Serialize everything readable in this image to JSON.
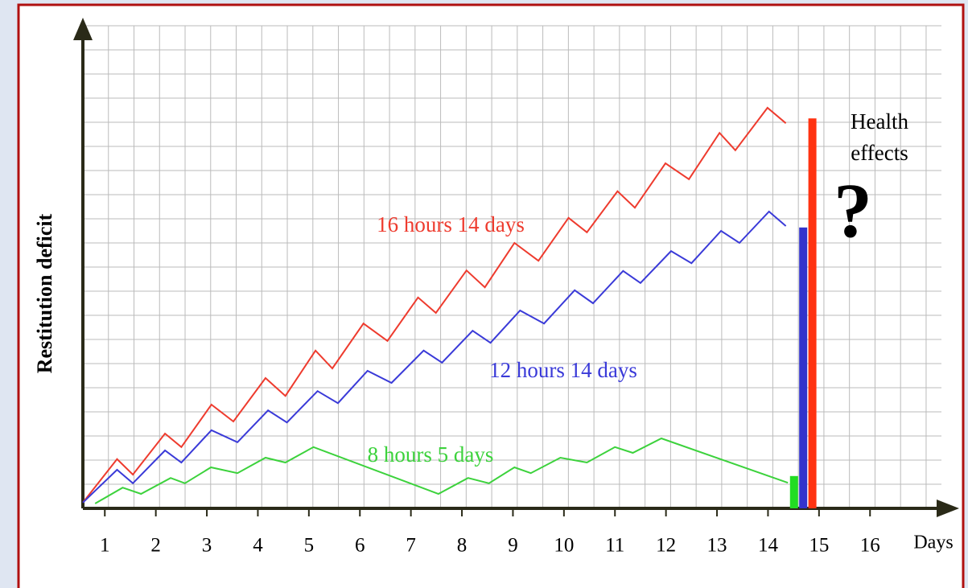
{
  "chart_data": {
    "type": "line",
    "y_label": "Restitution deficit",
    "x_label": "Days",
    "xlim": [
      0.57,
      17.4
    ],
    "ylim": [
      0,
      100
    ],
    "xticks": [
      1,
      2,
      3,
      4,
      5,
      6,
      7,
      8,
      9,
      10,
      11,
      12,
      13,
      14,
      15,
      16
    ],
    "grid": true,
    "series": [
      {
        "name": "16 hours 14 days",
        "color": "#ee3b2e",
        "x": [
          0.57,
          1.24,
          1.55,
          2.18,
          2.5,
          3.09,
          3.52,
          4.15,
          4.54,
          5.13,
          5.46,
          6.07,
          6.54,
          7.14,
          7.49,
          8.09,
          8.45,
          9.03,
          9.5,
          10.09,
          10.45,
          11.05,
          11.39,
          11.99,
          12.45,
          13.05,
          13.36,
          13.99,
          14.35
        ],
        "values": [
          1.2,
          10.2,
          7,
          15.5,
          12.7,
          21.5,
          18,
          27,
          23.3,
          32.7,
          29,
          38.3,
          34.7,
          43.7,
          40.5,
          49.3,
          45.8,
          55,
          51.3,
          60.2,
          57.2,
          65.7,
          62.3,
          71.5,
          68.2,
          77.8,
          74.2,
          83,
          79.8
        ]
      },
      {
        "name": "12 hours 14 days",
        "color": "#3a3ad8",
        "x": [
          0.57,
          1.24,
          1.55,
          2.18,
          2.5,
          3.09,
          3.6,
          4.2,
          4.57,
          5.17,
          5.57,
          6.15,
          6.62,
          7.25,
          7.61,
          8.21,
          8.56,
          9.14,
          9.61,
          10.21,
          10.57,
          11.16,
          11.5,
          12.1,
          12.5,
          13.08,
          13.44,
          14.02,
          14.35
        ],
        "values": [
          1.2,
          8,
          5.2,
          12,
          9.5,
          16.2,
          13.7,
          20.3,
          17.8,
          24.3,
          21.8,
          28.5,
          26,
          32.7,
          30.2,
          36.8,
          34.3,
          41,
          38.3,
          45.2,
          42.5,
          49.2,
          46.7,
          53.3,
          50.8,
          57.5,
          55,
          61.5,
          58.5
        ]
      },
      {
        "name": "8 hours 5 days",
        "color": "#3cd23c",
        "x": [
          0.81,
          1.35,
          1.71,
          2.29,
          2.57,
          3.08,
          3.6,
          4.15,
          4.54,
          5.09,
          7.54,
          8.12,
          8.53,
          9.03,
          9.35,
          9.93,
          10.45,
          11.0,
          11.35,
          11.91,
          14.39
        ],
        "values": [
          1,
          4.3,
          3,
          6.3,
          5.2,
          8.5,
          7.3,
          10.5,
          9.5,
          12.7,
          3,
          6.3,
          5.2,
          8.5,
          7.3,
          10.5,
          9.5,
          12.7,
          11.5,
          14.5,
          5.3
        ]
      }
    ],
    "bars": {
      "x": [
        14.51,
        14.69,
        14.87
      ],
      "values": [
        6.7,
        58.2,
        80.8
      ],
      "colors": [
        "#22dd22",
        "#3333cc",
        "#ff3311"
      ]
    },
    "annotations": [
      "Health",
      "effects",
      "?"
    ]
  }
}
